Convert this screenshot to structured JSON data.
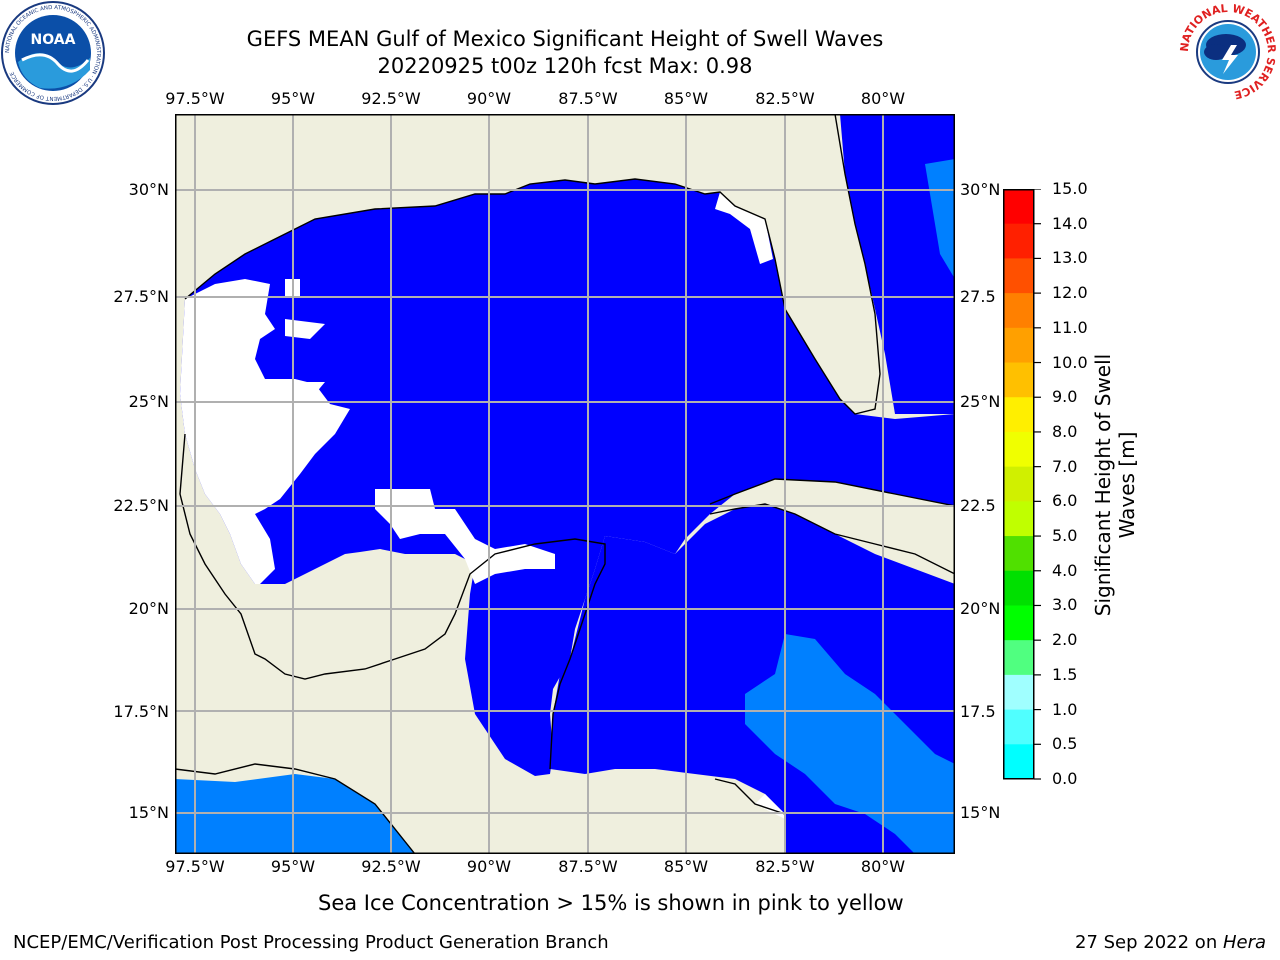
{
  "header": {
    "title_line1": "GEFS MEAN Gulf of Mexico Significant Height of Swell Waves",
    "title_line2": "20220925 t00z 120h fcst   Max: 0.98",
    "noaa_logo_text": "NOAA",
    "noaa_ring_text": "NATIONAL OCEANIC AND ATMOSPHERIC ADMINISTRATION · U.S. DEPARTMENT OF COMMERCE",
    "nws_ring_text": "NATIONAL WEATHER SERVICE"
  },
  "map": {
    "lon_labels": [
      "97.5°W",
      "95°W",
      "92.5°W",
      "90°W",
      "87.5°W",
      "85°W",
      "82.5°W",
      "80°W"
    ],
    "lat_labels_left": [
      "30°N",
      "27.5°N",
      "25°N",
      "22.5°N",
      "20°N",
      "17.5°N",
      "15°N"
    ],
    "lat_labels_right": [
      "30°N",
      "27.5",
      "25°N",
      "22.5",
      "20°N",
      "17.5",
      "15°N"
    ],
    "colors": {
      "land": "#efefde",
      "water_low": "#0000ff",
      "water_mid": "#0080ff",
      "nodata": "#ffffff",
      "grid": "#b0b0b0"
    }
  },
  "colorbar": {
    "label": "Significant Height of Swell Waves [m]",
    "ticks": [
      "15.0",
      "14.0",
      "13.0",
      "12.0",
      "11.0",
      "10.0",
      "9.0",
      "8.0",
      "7.0",
      "6.0",
      "5.0",
      "4.0",
      "3.0",
      "2.0",
      "1.5",
      "1.0",
      "0.5",
      "0.0"
    ],
    "colors": [
      "#ff0000",
      "#ff2000",
      "#ff5000",
      "#ff8000",
      "#ffa000",
      "#ffc000",
      "#ffef00",
      "#f0ff00",
      "#d0f000",
      "#c0ff00",
      "#50e000",
      "#00e000",
      "#00ff00",
      "#50ff80",
      "#a0ffff",
      "#50ffff",
      "#00ffff",
      "#0080ff",
      "#0000ff"
    ]
  },
  "caption": "Sea Ice Concentration > 15% is shown in pink to yellow",
  "footer": {
    "left": "NCEP/EMC/Verification Post Processing Product Generation Branch",
    "right_date": "27 Sep 2022 on ",
    "right_host": "Hera"
  }
}
